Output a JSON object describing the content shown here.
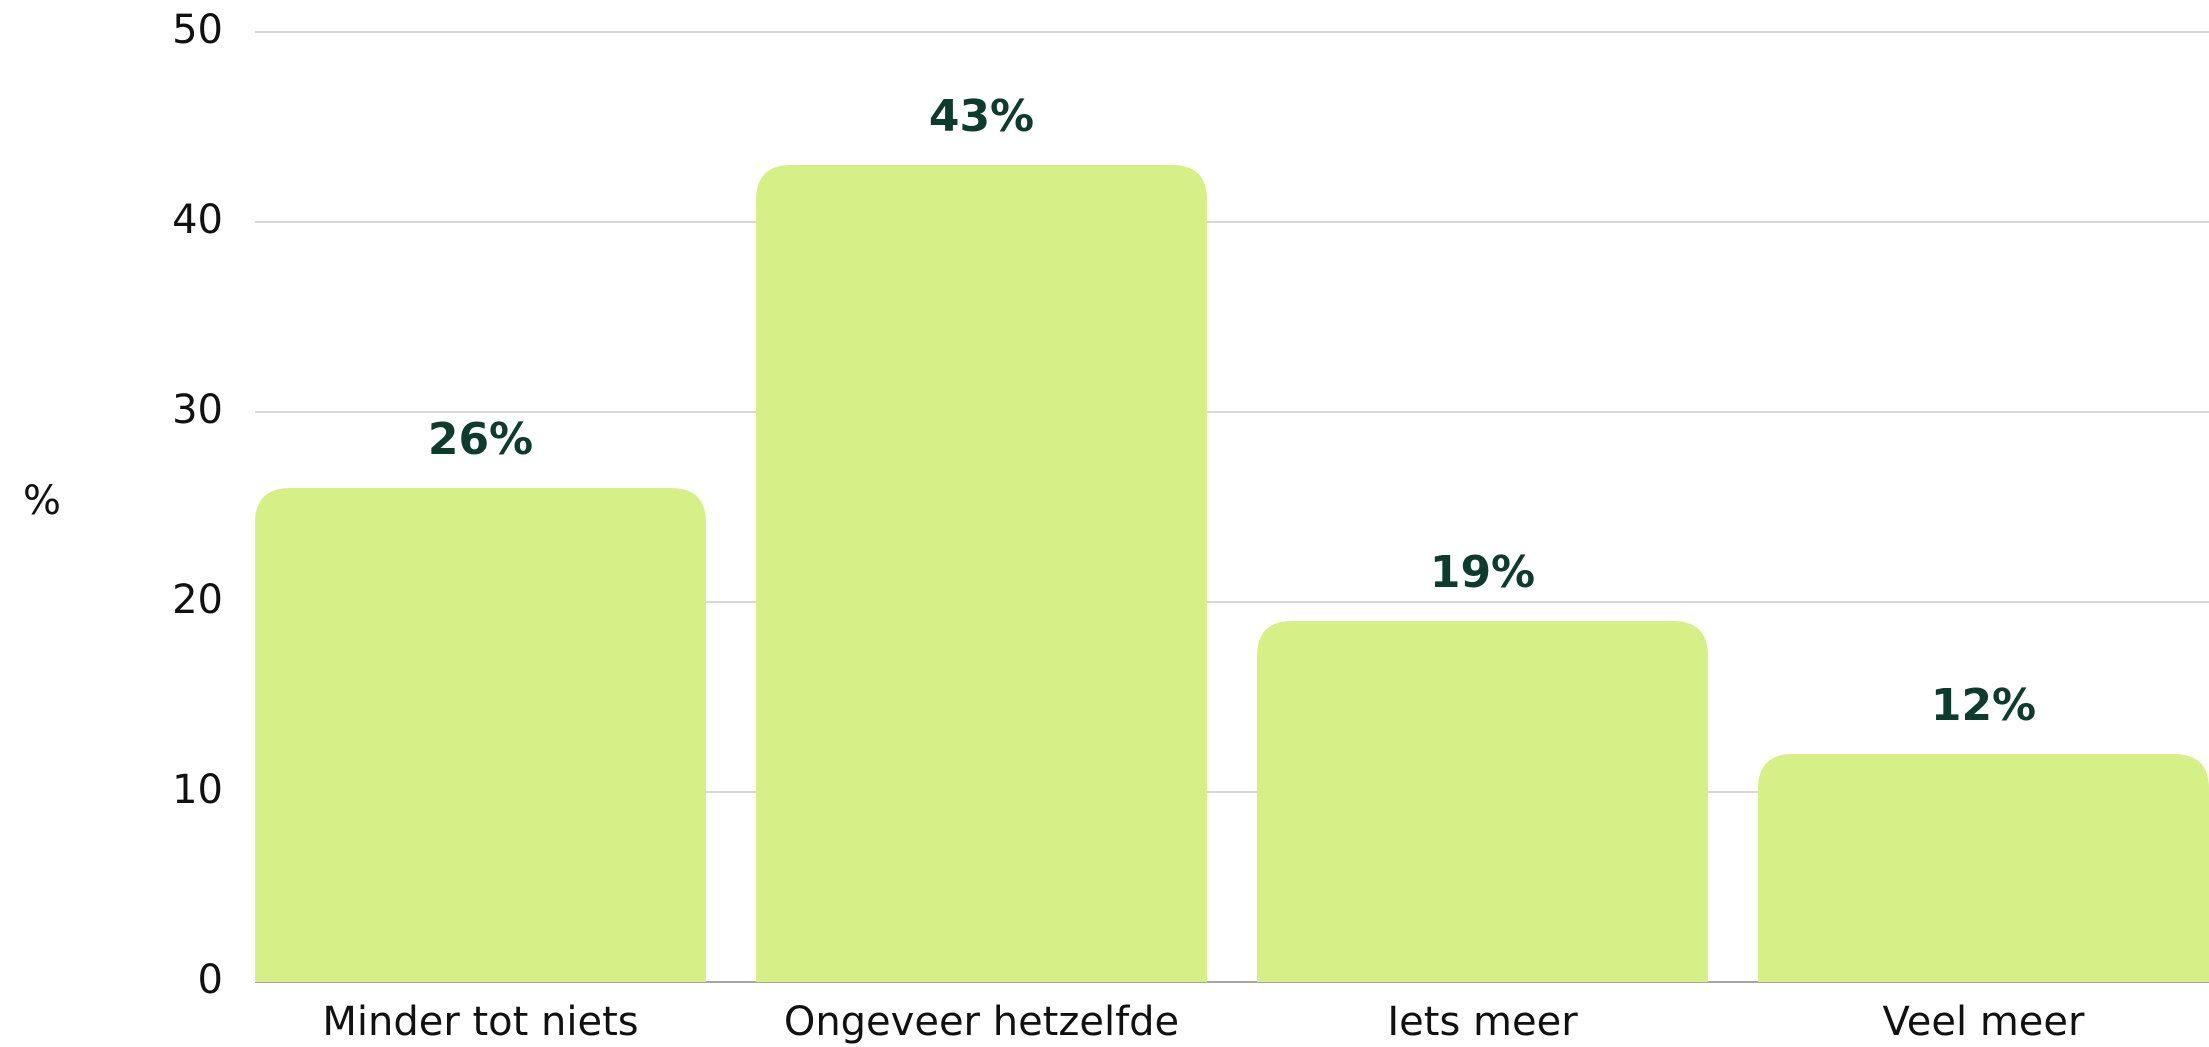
{
  "chart_data": {
    "type": "bar",
    "y_label": "%",
    "categories": [
      "Minder tot niets",
      "Ongeveer hetzelfde",
      "Iets meer",
      "Veel meer"
    ],
    "values": [
      26,
      43,
      19,
      12
    ],
    "value_labels": [
      "26%",
      "43%",
      "19%",
      "12%"
    ],
    "color": "#d4f087",
    "ylim": [
      0,
      50
    ],
    "yticks": [
      0,
      10,
      20,
      30,
      40,
      50
    ],
    "grid": true
  }
}
